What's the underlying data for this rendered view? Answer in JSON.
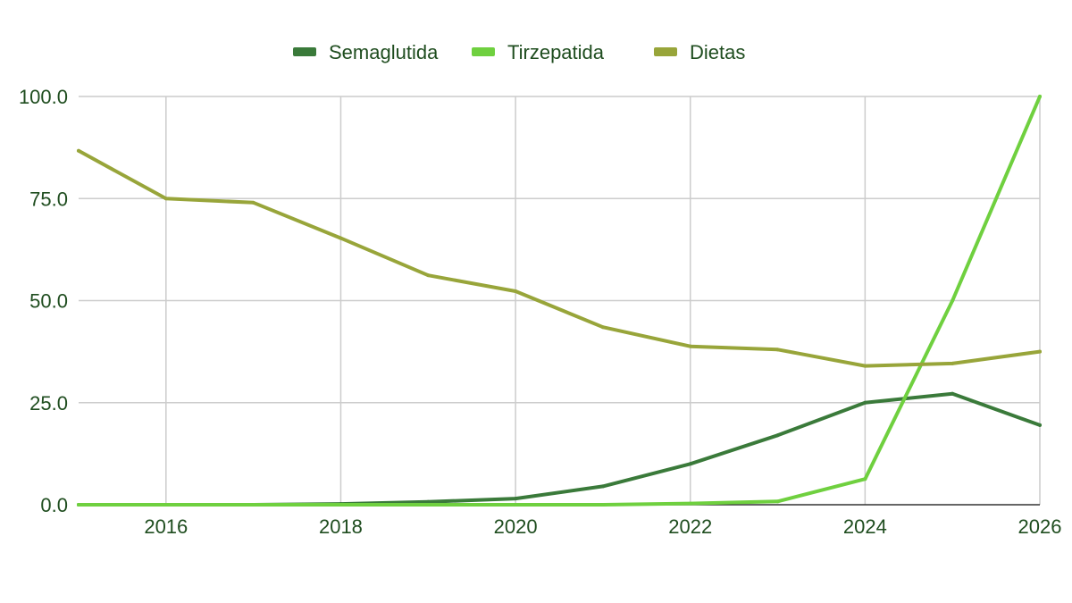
{
  "chart_data": {
    "type": "line",
    "title": "",
    "xlabel": "",
    "ylabel": "",
    "x": [
      2015,
      2016,
      2017,
      2018,
      2019,
      2020,
      2021,
      2022,
      2023,
      2024,
      2025,
      2026
    ],
    "xlim": [
      2015,
      2026
    ],
    "ylim": [
      0,
      100
    ],
    "x_ticks": [
      "2016",
      "2018",
      "2020",
      "2022",
      "2024",
      "2026"
    ],
    "y_ticks": [
      "0.0",
      "25.0",
      "50.0",
      "75.0",
      "100.0"
    ],
    "grid": true,
    "legend_position": "top",
    "series": [
      {
        "name": "Semaglutida",
        "color": "#3a7a3a",
        "values": [
          0,
          0,
          0,
          0.2,
          0.7,
          1.5,
          4.5,
          10,
          17,
          25,
          27.2,
          19.5
        ]
      },
      {
        "name": "Tirzepatida",
        "color": "#6fd03f",
        "values": [
          0,
          0,
          0,
          0,
          0,
          0,
          0,
          0.3,
          0.8,
          6.3,
          50,
          100
        ]
      },
      {
        "name": "Dietas",
        "color": "#98a53a",
        "values": [
          86.7,
          75,
          74,
          65.3,
          56.2,
          52.3,
          43.5,
          38.8,
          38,
          34,
          34.6,
          37.5
        ]
      }
    ]
  },
  "colors": {
    "text": "#1f4d1f",
    "grid": "#cccccc",
    "axis": "#333333"
  }
}
